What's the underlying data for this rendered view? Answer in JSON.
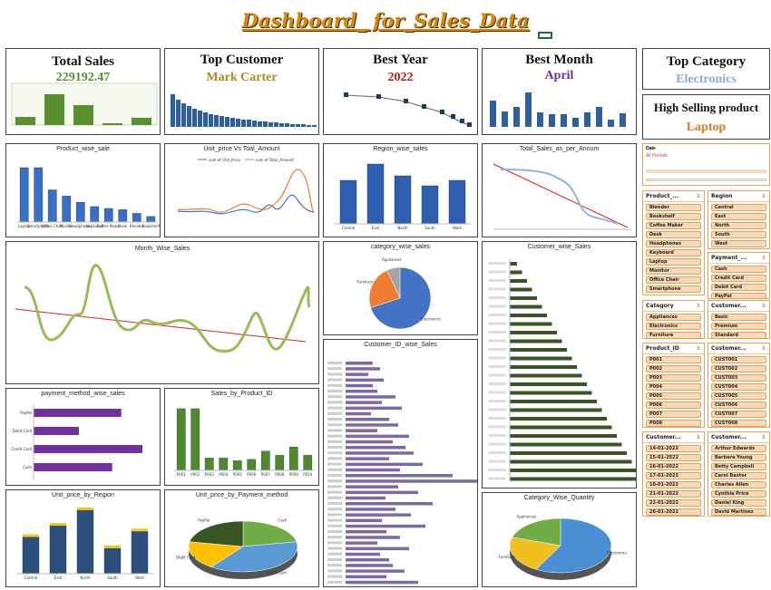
{
  "title": "Dashboard_ for_Sales_Data",
  "kpis": {
    "total_sales": {
      "label": "Total Sales",
      "value": "229192.47",
      "color": "#5a8f2e"
    },
    "top_customer": {
      "label": "Top Customer",
      "value": "Mark Carter",
      "color": "#b08a16"
    },
    "best_year": {
      "label": "Best Year",
      "value": "2022",
      "color": "#b01818"
    },
    "best_month": {
      "label": "Best Month",
      "value": "April",
      "color": "#7030a0"
    },
    "top_category": {
      "label": "Top Category",
      "value": "Electronics",
      "color": "#8eaadb"
    },
    "high_selling": {
      "label": "High Selling product",
      "value": "Laptop",
      "color": "#e07b28"
    }
  },
  "charts": {
    "product": {
      "title": "Product_wise_sale"
    },
    "unitprice": {
      "title": "Unit_price Vs Toal_Amount",
      "legend": [
        "sum of Unit_Price",
        "sum of Total_Amount"
      ]
    },
    "region": {
      "title": "Region_wise_sales"
    },
    "annum": {
      "title": "Total_Sales_as_per_Annum"
    },
    "month": {
      "title": "Month_Wise_Sales"
    },
    "category": {
      "title": "category_wise_sales"
    },
    "customer": {
      "title": "Customer_wise_Sales"
    },
    "custid": {
      "title": "Customer_ID_wise_Sales"
    },
    "payment": {
      "title": "payment_method_wise_sales"
    },
    "byproduct": {
      "title": "Sales_by_Product_ID"
    },
    "unitregion": {
      "title": "Unit_price_by_Region"
    },
    "unitpay": {
      "title": "Unit_price_by_Payment_method"
    },
    "catqty": {
      "title": "Category_Wise_Quantity"
    }
  },
  "chart_data": [
    {
      "type": "bar",
      "name": "product",
      "categories": [
        "Laptop",
        "Smartphone",
        "Office Chair",
        "Monitor",
        "Headphones",
        "Keyboard",
        "Coffee Maker",
        "Desk",
        "Blender",
        "Bookshelf"
      ],
      "values": [
        88,
        88,
        52,
        42,
        32,
        25,
        22,
        20,
        14,
        9
      ]
    },
    {
      "type": "bar",
      "name": "region",
      "categories": [
        "Central",
        "East",
        "North",
        "South",
        "West"
      ],
      "values": [
        48,
        66,
        53,
        42,
        48
      ]
    },
    {
      "type": "bar",
      "name": "payment",
      "categories": [
        "PayPal",
        "Debit Card",
        "Credit Card",
        "Cash"
      ],
      "values": [
        58,
        30,
        72,
        52
      ]
    },
    {
      "type": "bar",
      "name": "byproduct",
      "categories": [
        "P001",
        "P002",
        "P003",
        "P004",
        "P005",
        "P006",
        "P007",
        "P008",
        "P009",
        "P010"
      ],
      "values": [
        90,
        90,
        18,
        18,
        14,
        16,
        28,
        22,
        34,
        22
      ]
    },
    {
      "type": "bar",
      "name": "unitregion",
      "categories": [
        "Central",
        "East",
        "North",
        "South",
        "West"
      ],
      "values": [
        52,
        68,
        90,
        36,
        60
      ]
    },
    {
      "type": "pie",
      "name": "category",
      "categories": [
        "Electronics",
        "Furniture",
        "Appliances"
      ],
      "values": [
        70,
        23,
        7
      ]
    },
    {
      "type": "pie",
      "name": "catqty",
      "categories": [
        "Electronics",
        "Furniture",
        "Appliances"
      ],
      "values": [
        58,
        22,
        20
      ]
    },
    {
      "type": "pie",
      "name": "unitpay",
      "categories": [
        "Cash",
        "Credit Card",
        "Debit Card",
        "PayPal"
      ],
      "values": [
        22,
        38,
        18,
        22
      ]
    }
  ],
  "slicers": [
    {
      "name": "Product_...",
      "items": [
        "Blender",
        "Bookshelf",
        "Coffee Maker",
        "Desk",
        "Headphones",
        "Keyboard",
        "Laptop",
        "Monitor",
        "Office Chair",
        "Smartphone"
      ]
    },
    {
      "name": "Region",
      "items": [
        "Central",
        "East",
        "North",
        "South",
        "West"
      ]
    },
    {
      "name": "Payment_...",
      "items": [
        "Cash",
        "Credit Card",
        "Debit Card",
        "PayPal"
      ]
    },
    {
      "name": "Category",
      "items": [
        "Appliances",
        "Electronics",
        "Furniture"
      ]
    },
    {
      "name": "Customer...",
      "items": [
        "Basic",
        "Premium",
        "Standard"
      ]
    },
    {
      "name": "Product_ID",
      "items": [
        "P001",
        "P002",
        "P003",
        "P004",
        "P005",
        "P006",
        "P007",
        "P008"
      ]
    },
    {
      "name": "Customer...",
      "items": [
        "CUST001",
        "CUST002",
        "CUST003",
        "CUST004",
        "CUST005",
        "CUST006",
        "CUST007",
        "CUST008"
      ]
    },
    {
      "name": "Customer...",
      "items": [
        "14-01-2022",
        "15-01-2022",
        "16-01-2022",
        "17-01-2022",
        "18-01-2022",
        "21-01-2022",
        "22-01-2022",
        "26-01-2022"
      ]
    },
    {
      "name": "Customer...",
      "items": [
        "Arthur Edwards",
        "Barbara Young",
        "Betty Campbell",
        "Carol Baxter",
        "Charles Allen",
        "Cynthia Price",
        "Daniel King",
        "David Martinez"
      ]
    }
  ],
  "timeline": {
    "label": "Date",
    "value": "All Periods"
  }
}
